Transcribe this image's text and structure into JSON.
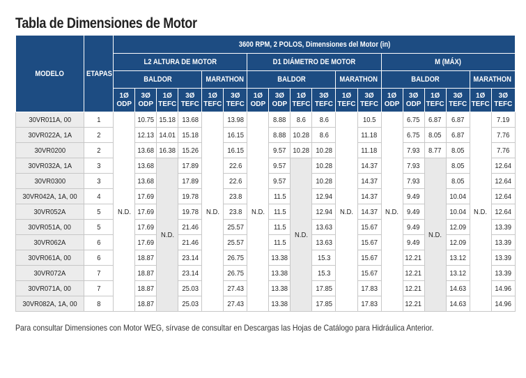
{
  "title": "Tabla de Dimensiones de Motor",
  "header": {
    "modelo": "MODELO",
    "etapas": "ETAPAS",
    "span_title": "3600 RPM, 2 POLOS, Dimensiones del Motor (in)",
    "groups": [
      "L2 ALTURA DE MOTOR",
      "D1 DIÁMETRO DE MOTOR",
      "M (MÁX)"
    ],
    "brands": {
      "baldor": "BALDOR",
      "marathon": "MARATHON"
    },
    "sub": [
      {
        "l1": "1Ø",
        "l2": "ODP"
      },
      {
        "l1": "3Ø",
        "l2": "ODP"
      },
      {
        "l1": "1Ø",
        "l2": "TEFC"
      },
      {
        "l1": "3Ø",
        "l2": "TEFC"
      },
      {
        "l1": "1Ø",
        "l2": "TEFC"
      },
      {
        "l1": "3Ø",
        "l2": "TEFC"
      }
    ]
  },
  "nd": "N.D.",
  "rows": [
    {
      "model": "30VR011A, 00",
      "stages": "1",
      "l2": [
        "10.75",
        "15.18",
        "13.68",
        "13.98"
      ],
      "d1": [
        "8.88",
        "8.6",
        "8.6",
        "10.5"
      ],
      "m": [
        "6.75",
        "6.87",
        "6.87",
        "7.19"
      ]
    },
    {
      "model": "30VR022A, 1A",
      "stages": "2",
      "l2": [
        "12.13",
        "14.01",
        "15.18",
        "16.15"
      ],
      "d1": [
        "8.88",
        "10.28",
        "8.6",
        "11.18"
      ],
      "m": [
        "6.75",
        "8.05",
        "6.87",
        "7.76"
      ]
    },
    {
      "model": "30VR0200",
      "stages": "2",
      "l2": [
        "13.68",
        "16.38",
        "15.26",
        "16.15"
      ],
      "d1": [
        "9.57",
        "10.28",
        "10.28",
        "11.18"
      ],
      "m": [
        "7.93",
        "8.77",
        "8.05",
        "7.76"
      ]
    },
    {
      "model": "30VR032A, 1A",
      "stages": "3",
      "l2": [
        "13.68",
        "17.89",
        "22.6"
      ],
      "d1": [
        "9.57",
        "10.28",
        "14.37"
      ],
      "m": [
        "7.93",
        "8.05",
        "12.64"
      ]
    },
    {
      "model": "30VR0300",
      "stages": "3",
      "l2": [
        "13.68",
        "17.89",
        "22.6"
      ],
      "d1": [
        "9.57",
        "10.28",
        "14.37"
      ],
      "m": [
        "7.93",
        "8.05",
        "12.64"
      ]
    },
    {
      "model": "30VR042A, 1A, 00",
      "stages": "4",
      "l2": [
        "17.69",
        "19.78",
        "23.8"
      ],
      "d1": [
        "11.5",
        "12.94",
        "14.37"
      ],
      "m": [
        "9.49",
        "10.04",
        "12.64"
      ]
    },
    {
      "model": "30VR052A",
      "stages": "5",
      "l2": [
        "17.69",
        "19.78",
        "23.8"
      ],
      "d1": [
        "11.5",
        "12.94",
        "14.37"
      ],
      "m": [
        "9.49",
        "10.04",
        "12.64"
      ]
    },
    {
      "model": "30VR051A, 00",
      "stages": "5",
      "l2": [
        "17.69",
        "21.46",
        "25.57"
      ],
      "d1": [
        "11.5",
        "13.63",
        "15.67"
      ],
      "m": [
        "9.49",
        "12.09",
        "13.39"
      ]
    },
    {
      "model": "30VR062A",
      "stages": "6",
      "l2": [
        "17.69",
        "21.46",
        "25.57"
      ],
      "d1": [
        "11.5",
        "13.63",
        "15.67"
      ],
      "m": [
        "9.49",
        "12.09",
        "13.39"
      ]
    },
    {
      "model": "30VR061A, 00",
      "stages": "6",
      "l2": [
        "18.87",
        "23.14",
        "26.75"
      ],
      "d1": [
        "13.38",
        "15.3",
        "15.67"
      ],
      "m": [
        "12.21",
        "13.12",
        "13.39"
      ]
    },
    {
      "model": "30VR072A",
      "stages": "7",
      "l2": [
        "18.87",
        "23.14",
        "26.75"
      ],
      "d1": [
        "13.38",
        "15.3",
        "15.67"
      ],
      "m": [
        "12.21",
        "13.12",
        "13.39"
      ]
    },
    {
      "model": "30VR071A, 00",
      "stages": "7",
      "l2": [
        "18.87",
        "25.03",
        "27.43"
      ],
      "d1": [
        "13.38",
        "17.85",
        "17.83"
      ],
      "m": [
        "12.21",
        "14.63",
        "14.96"
      ]
    },
    {
      "model": "30VR082A, 1A, 00",
      "stages": "8",
      "l2": [
        "18.87",
        "25.03",
        "27.43"
      ],
      "d1": [
        "13.38",
        "17.85",
        "17.83"
      ],
      "m": [
        "12.21",
        "14.63",
        "14.96"
      ]
    }
  ],
  "footnote": "Para consultar Dimensiones con Motor WEG, sírvase de consultar en Descargas las Hojas de Catálogo para Hidráulica Anterior."
}
